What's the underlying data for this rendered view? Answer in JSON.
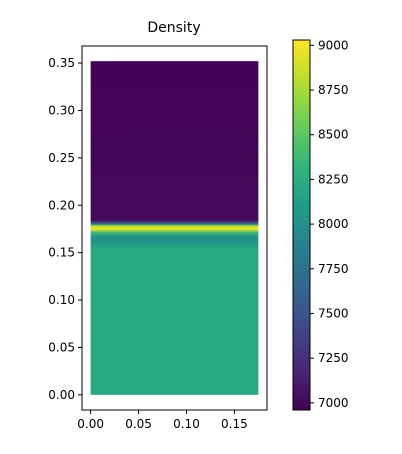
{
  "chart_data": {
    "type": "heatmap",
    "title": "Density",
    "xlabel": "",
    "ylabel": "",
    "x_range": [
      0.0,
      0.175
    ],
    "y_range": [
      0.0,
      0.352
    ],
    "xlim": [
      -0.009,
      0.184
    ],
    "ylim": [
      -0.016,
      0.368
    ],
    "x_ticks": [
      {
        "value": 0.0,
        "label": "0.00"
      },
      {
        "value": 0.05,
        "label": "0.05"
      },
      {
        "value": 0.1,
        "label": "0.10"
      },
      {
        "value": 0.15,
        "label": "0.15"
      }
    ],
    "y_ticks": [
      {
        "value": 0.0,
        "label": "0.00"
      },
      {
        "value": 0.05,
        "label": "0.05"
      },
      {
        "value": 0.1,
        "label": "0.10"
      },
      {
        "value": 0.15,
        "label": "0.15"
      },
      {
        "value": 0.2,
        "label": "0.20"
      },
      {
        "value": 0.25,
        "label": "0.25"
      },
      {
        "value": 0.3,
        "label": "0.30"
      },
      {
        "value": 0.35,
        "label": "0.35"
      }
    ],
    "density_profile": [
      {
        "y": 0.0,
        "value": 8200
      },
      {
        "y": 0.155,
        "value": 8200
      },
      {
        "y": 0.16,
        "value": 8050
      },
      {
        "y": 0.166,
        "value": 7980
      },
      {
        "y": 0.171,
        "value": 8350
      },
      {
        "y": 0.175,
        "value": 9000
      },
      {
        "y": 0.178,
        "value": 8800
      },
      {
        "y": 0.18,
        "value": 7900
      },
      {
        "y": 0.182,
        "value": 7300
      },
      {
        "y": 0.185,
        "value": 7000
      },
      {
        "y": 0.352,
        "value": 6970
      }
    ],
    "colorbar": {
      "colormap": "viridis",
      "colors": [
        "#440154",
        "#482878",
        "#3e4989",
        "#31688e",
        "#26828e",
        "#1f9e89",
        "#35b779",
        "#6ece58",
        "#b5de2b",
        "#fde725"
      ],
      "vmin": 6960,
      "vmax": 9030,
      "ticks": [
        {
          "value": 7000,
          "label": "7000"
        },
        {
          "value": 7250,
          "label": "7250"
        },
        {
          "value": 7500,
          "label": "7500"
        },
        {
          "value": 7750,
          "label": "7750"
        },
        {
          "value": 8000,
          "label": "8000"
        },
        {
          "value": 8250,
          "label": "8250"
        },
        {
          "value": 8500,
          "label": "8500"
        },
        {
          "value": 8750,
          "label": "8750"
        },
        {
          "value": 9000,
          "label": "9000"
        }
      ]
    },
    "grid": false,
    "legend": "none"
  }
}
